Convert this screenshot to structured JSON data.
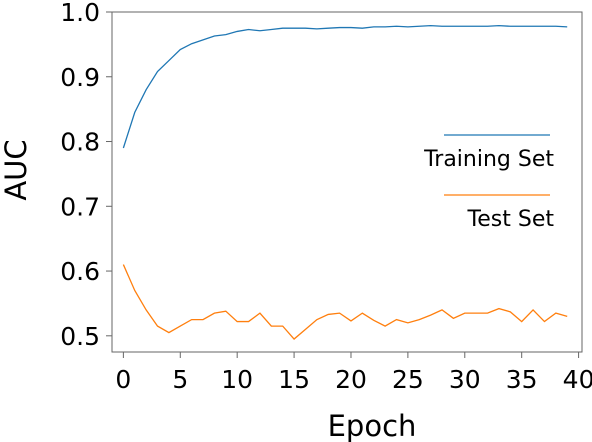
{
  "chart_data": {
    "type": "line",
    "title": "",
    "xlabel": "Epoch",
    "ylabel": "AUC",
    "xlim": [
      -1,
      40.3
    ],
    "ylim": [
      0.475,
      1.0
    ],
    "xticks": [
      0,
      5,
      10,
      15,
      20,
      25,
      30,
      35,
      40
    ],
    "yticks": [
      0.5,
      0.6,
      0.7,
      0.8,
      0.9,
      1.0
    ],
    "xtick_labels": [
      "0",
      "5",
      "10",
      "15",
      "20",
      "25",
      "30",
      "35",
      "40"
    ],
    "ytick_labels": [
      "0.5",
      "0.6",
      "0.7",
      "0.8",
      "0.9",
      "1.0"
    ],
    "grid": false,
    "legend_position": "right",
    "series": [
      {
        "name": "Training Set",
        "color": "#1f77b4",
        "x": [
          0,
          1,
          2,
          3,
          4,
          5,
          6,
          7,
          8,
          9,
          10,
          11,
          12,
          13,
          14,
          15,
          16,
          17,
          18,
          19,
          20,
          21,
          22,
          23,
          24,
          25,
          26,
          27,
          28,
          29,
          30,
          31,
          32,
          33,
          34,
          35,
          36,
          37,
          38,
          39
        ],
        "y": [
          0.79,
          0.845,
          0.88,
          0.908,
          0.925,
          0.942,
          0.951,
          0.957,
          0.963,
          0.965,
          0.97,
          0.973,
          0.971,
          0.973,
          0.975,
          0.975,
          0.975,
          0.974,
          0.975,
          0.976,
          0.976,
          0.975,
          0.977,
          0.977,
          0.978,
          0.977,
          0.978,
          0.979,
          0.978,
          0.978,
          0.978,
          0.978,
          0.978,
          0.979,
          0.978,
          0.978,
          0.978,
          0.978,
          0.978,
          0.977
        ]
      },
      {
        "name": "Test Set",
        "color": "#ff7f0e",
        "x": [
          0,
          1,
          2,
          3,
          4,
          5,
          6,
          7,
          8,
          9,
          10,
          11,
          12,
          13,
          14,
          15,
          16,
          17,
          18,
          19,
          20,
          21,
          22,
          23,
          24,
          25,
          26,
          27,
          28,
          29,
          30,
          31,
          32,
          33,
          34,
          35,
          36,
          37,
          38,
          39
        ],
        "y": [
          0.61,
          0.57,
          0.54,
          0.515,
          0.505,
          0.515,
          0.525,
          0.525,
          0.535,
          0.538,
          0.522,
          0.522,
          0.535,
          0.515,
          0.515,
          0.495,
          0.51,
          0.525,
          0.533,
          0.535,
          0.523,
          0.535,
          0.524,
          0.515,
          0.525,
          0.52,
          0.525,
          0.532,
          0.54,
          0.527,
          0.535,
          0.535,
          0.535,
          0.542,
          0.537,
          0.522,
          0.54,
          0.522,
          0.535,
          0.53
        ]
      }
    ]
  }
}
